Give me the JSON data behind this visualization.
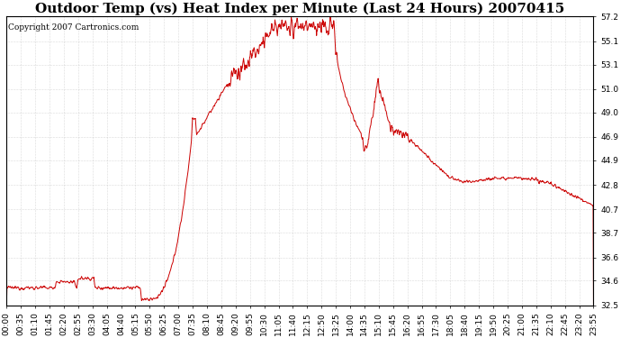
{
  "title": "Outdoor Temp (vs) Heat Index per Minute (Last 24 Hours) 20070415",
  "copyright": "Copyright 2007 Cartronics.com",
  "y_min": 32.5,
  "y_max": 57.2,
  "y_ticks": [
    57.2,
    55.1,
    53.1,
    51.0,
    49.0,
    46.9,
    44.9,
    42.8,
    40.7,
    38.7,
    36.6,
    34.6,
    32.5
  ],
  "x_labels": [
    "00:00",
    "00:35",
    "01:10",
    "01:45",
    "02:20",
    "02:55",
    "03:30",
    "04:05",
    "04:40",
    "05:15",
    "05:50",
    "06:25",
    "07:00",
    "07:35",
    "08:10",
    "08:45",
    "09:20",
    "09:55",
    "10:30",
    "11:05",
    "11:40",
    "12:15",
    "12:50",
    "13:25",
    "14:00",
    "14:35",
    "15:10",
    "15:45",
    "16:20",
    "16:55",
    "17:30",
    "18:05",
    "18:40",
    "19:15",
    "19:50",
    "20:25",
    "21:00",
    "21:35",
    "22:10",
    "22:45",
    "23:20",
    "23:55"
  ],
  "line_color": "#cc0000",
  "background_color": "#ffffff",
  "grid_color": "#bbbbbb",
  "title_fontsize": 11,
  "copyright_fontsize": 6.5,
  "tick_fontsize": 6.5
}
